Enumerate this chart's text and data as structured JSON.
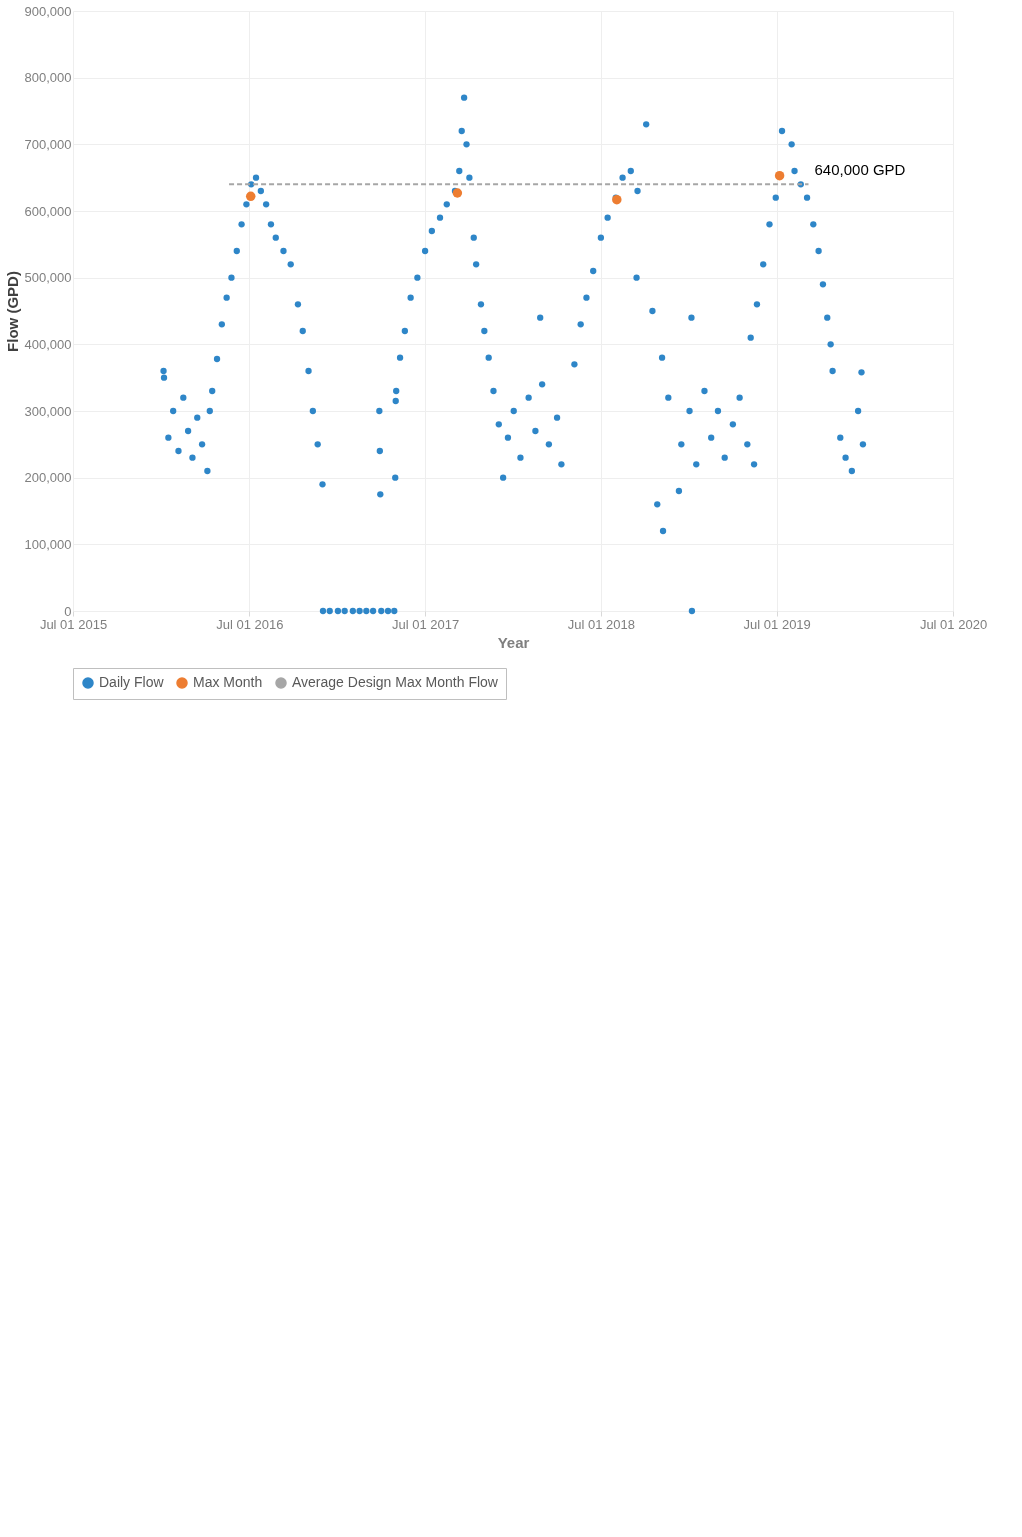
{
  "chart_data": {
    "type": "scatter",
    "xlabel": "Year",
    "ylabel": "Flow (GPD)",
    "legend": "bottom",
    "grid": true,
    "xlim": [
      "2015-07-01",
      "2020-07-01"
    ],
    "xticks": [
      {
        "value": "2015-07-01",
        "label": "Jul 01 2015"
      },
      {
        "value": "2016-07-01",
        "label": "Jul 01 2016"
      },
      {
        "value": "2017-07-01",
        "label": "Jul 01 2017"
      },
      {
        "value": "2018-07-01",
        "label": "Jul 01 2018"
      },
      {
        "value": "2019-07-01",
        "label": "Jul 01 2019"
      },
      {
        "value": "2020-07-01",
        "label": "Jul 01 2020"
      }
    ],
    "ylim": [
      0,
      900000
    ],
    "yticks": [
      0,
      {
        "value": 100000,
        "label": "100,000"
      },
      {
        "value": 200000,
        "label": "200,000"
      },
      {
        "value": 300000,
        "label": "300,000"
      },
      {
        "value": 400000,
        "label": "400,000"
      },
      {
        "value": 500000,
        "label": "500,000"
      },
      {
        "value": 600000,
        "label": "600,000"
      },
      {
        "value": 700000,
        "label": "700,000"
      },
      {
        "value": 800000,
        "label": "800,000"
      },
      {
        "value": 900000,
        "label": "900,000"
      }
    ],
    "series": [
      {
        "name": "Daily Flow",
        "color": "#2e86c8",
        "marker": "circle",
        "x": [
          "2016-01-05",
          "2016-01-06",
          "2016-01-15",
          "2016-01-25",
          "2016-02-05",
          "2016-02-15",
          "2016-02-25",
          "2016-03-05",
          "2016-03-15",
          "2016-03-25",
          "2016-04-05",
          "2016-04-10",
          "2016-04-15",
          "2016-04-25",
          "2016-05-05",
          "2016-05-15",
          "2016-05-25",
          "2016-06-05",
          "2016-06-15",
          "2016-06-25",
          "2016-07-05",
          "2016-07-15",
          "2016-07-25",
          "2016-08-05",
          "2016-08-15",
          "2016-08-25",
          "2016-09-10",
          "2016-09-25",
          "2016-10-10",
          "2016-10-20",
          "2016-11-01",
          "2016-11-10",
          "2016-11-20",
          "2016-11-30",
          "2016-12-01",
          "2016-12-15",
          "2017-01-01",
          "2017-01-15",
          "2017-02-01",
          "2017-02-15",
          "2017-03-01",
          "2017-03-15",
          "2017-04-01",
          "2017-04-15",
          "2017-04-28",
          "2017-03-28",
          "2017-03-29",
          "2017-03-30",
          "2017-04-30",
          "2017-05-01",
          "2017-05-02",
          "2017-05-10",
          "2017-05-20",
          "2017-06-01",
          "2017-06-15",
          "2017-07-01",
          "2017-07-15",
          "2017-08-01",
          "2017-08-15",
          "2017-09-01",
          "2017-09-10",
          "2017-09-15",
          "2017-09-20",
          "2017-09-25",
          "2017-10-01",
          "2017-10-10",
          "2017-10-15",
          "2017-10-25",
          "2017-11-01",
          "2017-11-10",
          "2017-11-20",
          "2017-12-01",
          "2017-12-10",
          "2017-12-20",
          "2018-01-01",
          "2018-01-15",
          "2018-02-01",
          "2018-02-15",
          "2018-02-25",
          "2018-03-01",
          "2018-03-15",
          "2018-04-01",
          "2018-04-10",
          "2018-05-07",
          "2018-05-20",
          "2018-06-01",
          "2018-06-15",
          "2018-07-01",
          "2018-07-15",
          "2018-08-01",
          "2018-08-15",
          "2018-09-01",
          "2018-09-13",
          "2018-09-15",
          "2018-10-03",
          "2018-10-16",
          "2018-10-26",
          "2018-11-05",
          "2018-11-07",
          "2018-11-18",
          "2018-12-10",
          "2018-12-15",
          "2019-01-01",
          "2019-01-05",
          "2019-01-06",
          "2019-01-15",
          "2019-02-01",
          "2019-02-15",
          "2019-03-01",
          "2019-03-15",
          "2019-04-01",
          "2019-04-15",
          "2019-05-01",
          "2019-05-08",
          "2019-05-15",
          "2019-05-21",
          "2019-06-03",
          "2019-06-16",
          "2019-06-29",
          "2019-07-12",
          "2019-08-01",
          "2019-08-07",
          "2019-08-20",
          "2019-09-02",
          "2019-09-15",
          "2019-09-26",
          "2019-10-05",
          "2019-10-14",
          "2019-10-21",
          "2019-10-25",
          "2019-11-10",
          "2019-11-21",
          "2019-12-04",
          "2019-12-17",
          "2019-12-24",
          "2019-12-27"
        ],
        "values": [
          360000,
          350000,
          260000,
          300000,
          240000,
          320000,
          270000,
          230000,
          290000,
          250000,
          210000,
          300000,
          330000,
          378000,
          430000,
          470000,
          500000,
          540000,
          580000,
          610000,
          640000,
          650000,
          630000,
          610000,
          580000,
          560000,
          540000,
          520000,
          460000,
          420000,
          360000,
          300000,
          250000,
          190000,
          0,
          0,
          0,
          0,
          0,
          0,
          0,
          0,
          0,
          0,
          0,
          300000,
          240000,
          175000,
          200000,
          315000,
          330000,
          380000,
          420000,
          470000,
          500000,
          540000,
          570000,
          590000,
          610000,
          630000,
          660000,
          720000,
          770000,
          700000,
          650000,
          560000,
          520000,
          460000,
          420000,
          380000,
          330000,
          280000,
          200000,
          260000,
          300000,
          230000,
          320000,
          270000,
          440000,
          340000,
          250000,
          290000,
          220000,
          370000,
          430000,
          470000,
          510000,
          560000,
          590000,
          620000,
          650000,
          660000,
          500000,
          630000,
          730000,
          450000,
          160000,
          380000,
          120000,
          320000,
          180000,
          250000,
          300000,
          440000,
          0,
          220000,
          330000,
          260000,
          300000,
          230000,
          280000,
          320000,
          250000,
          410000,
          220000,
          460000,
          520000,
          580000,
          620000,
          720000,
          700000,
          660000,
          640000,
          620000,
          580000,
          540000,
          490000,
          440000,
          400000,
          360000,
          260000,
          230000,
          210000,
          300000,
          358000,
          250000
        ]
      },
      {
        "name": "Max Month",
        "color": "#ed7d31",
        "marker": "circle",
        "x": [
          "2016-07-04",
          "2017-09-06",
          "2018-08-03",
          "2019-07-07"
        ],
        "values": [
          622000,
          627000,
          617000,
          653000
        ]
      },
      {
        "name": "Average Design Max Month Flow",
        "type": "line",
        "line_style": "dashed",
        "color": "#a6a6a6",
        "x": [
          "2016-05-20",
          "2019-09-05"
        ],
        "values": [
          640000,
          640000
        ]
      }
    ],
    "annotations": [
      {
        "text": "640,000 GPD",
        "x": "2019-09-05",
        "y": 640000
      }
    ]
  }
}
